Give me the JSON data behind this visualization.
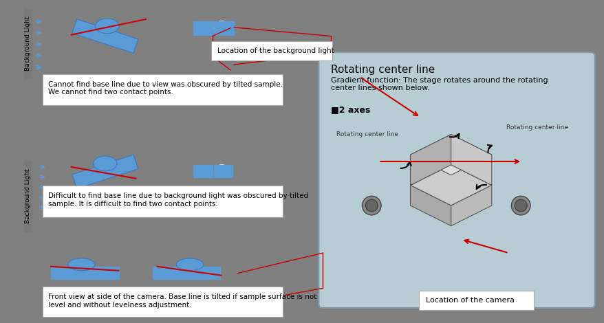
{
  "bg_color": "#808080",
  "panel_bg": "#b8ccd4",
  "box_bg": "#ffffff",
  "blue_color": "#5b9bd5",
  "red_color": "#cc0000",
  "dark_color": "#404040",
  "title": "Rotating center line",
  "subtitle": "Gradient function: The stage rotates around the rotating\ncenter lines shown below.",
  "axes_label": "■2 axes",
  "rot_label": "Rotating center line",
  "camera_label": "Location of the camera",
  "bg_light_label": "Location of the background light",
  "text1": "Cannot find base line due to view was obscured by tilted sample.\nWe cannot find two contact points.",
  "text2": "Difficult to find base line due to background light was obscured by tilted\nsample. It is difficult to find two contact points.",
  "text3": "Front view at side of the camera. Base line is tilted if sample surface is not\nlevel and without levelness adjustment.",
  "bg_light_text": "Background Light"
}
